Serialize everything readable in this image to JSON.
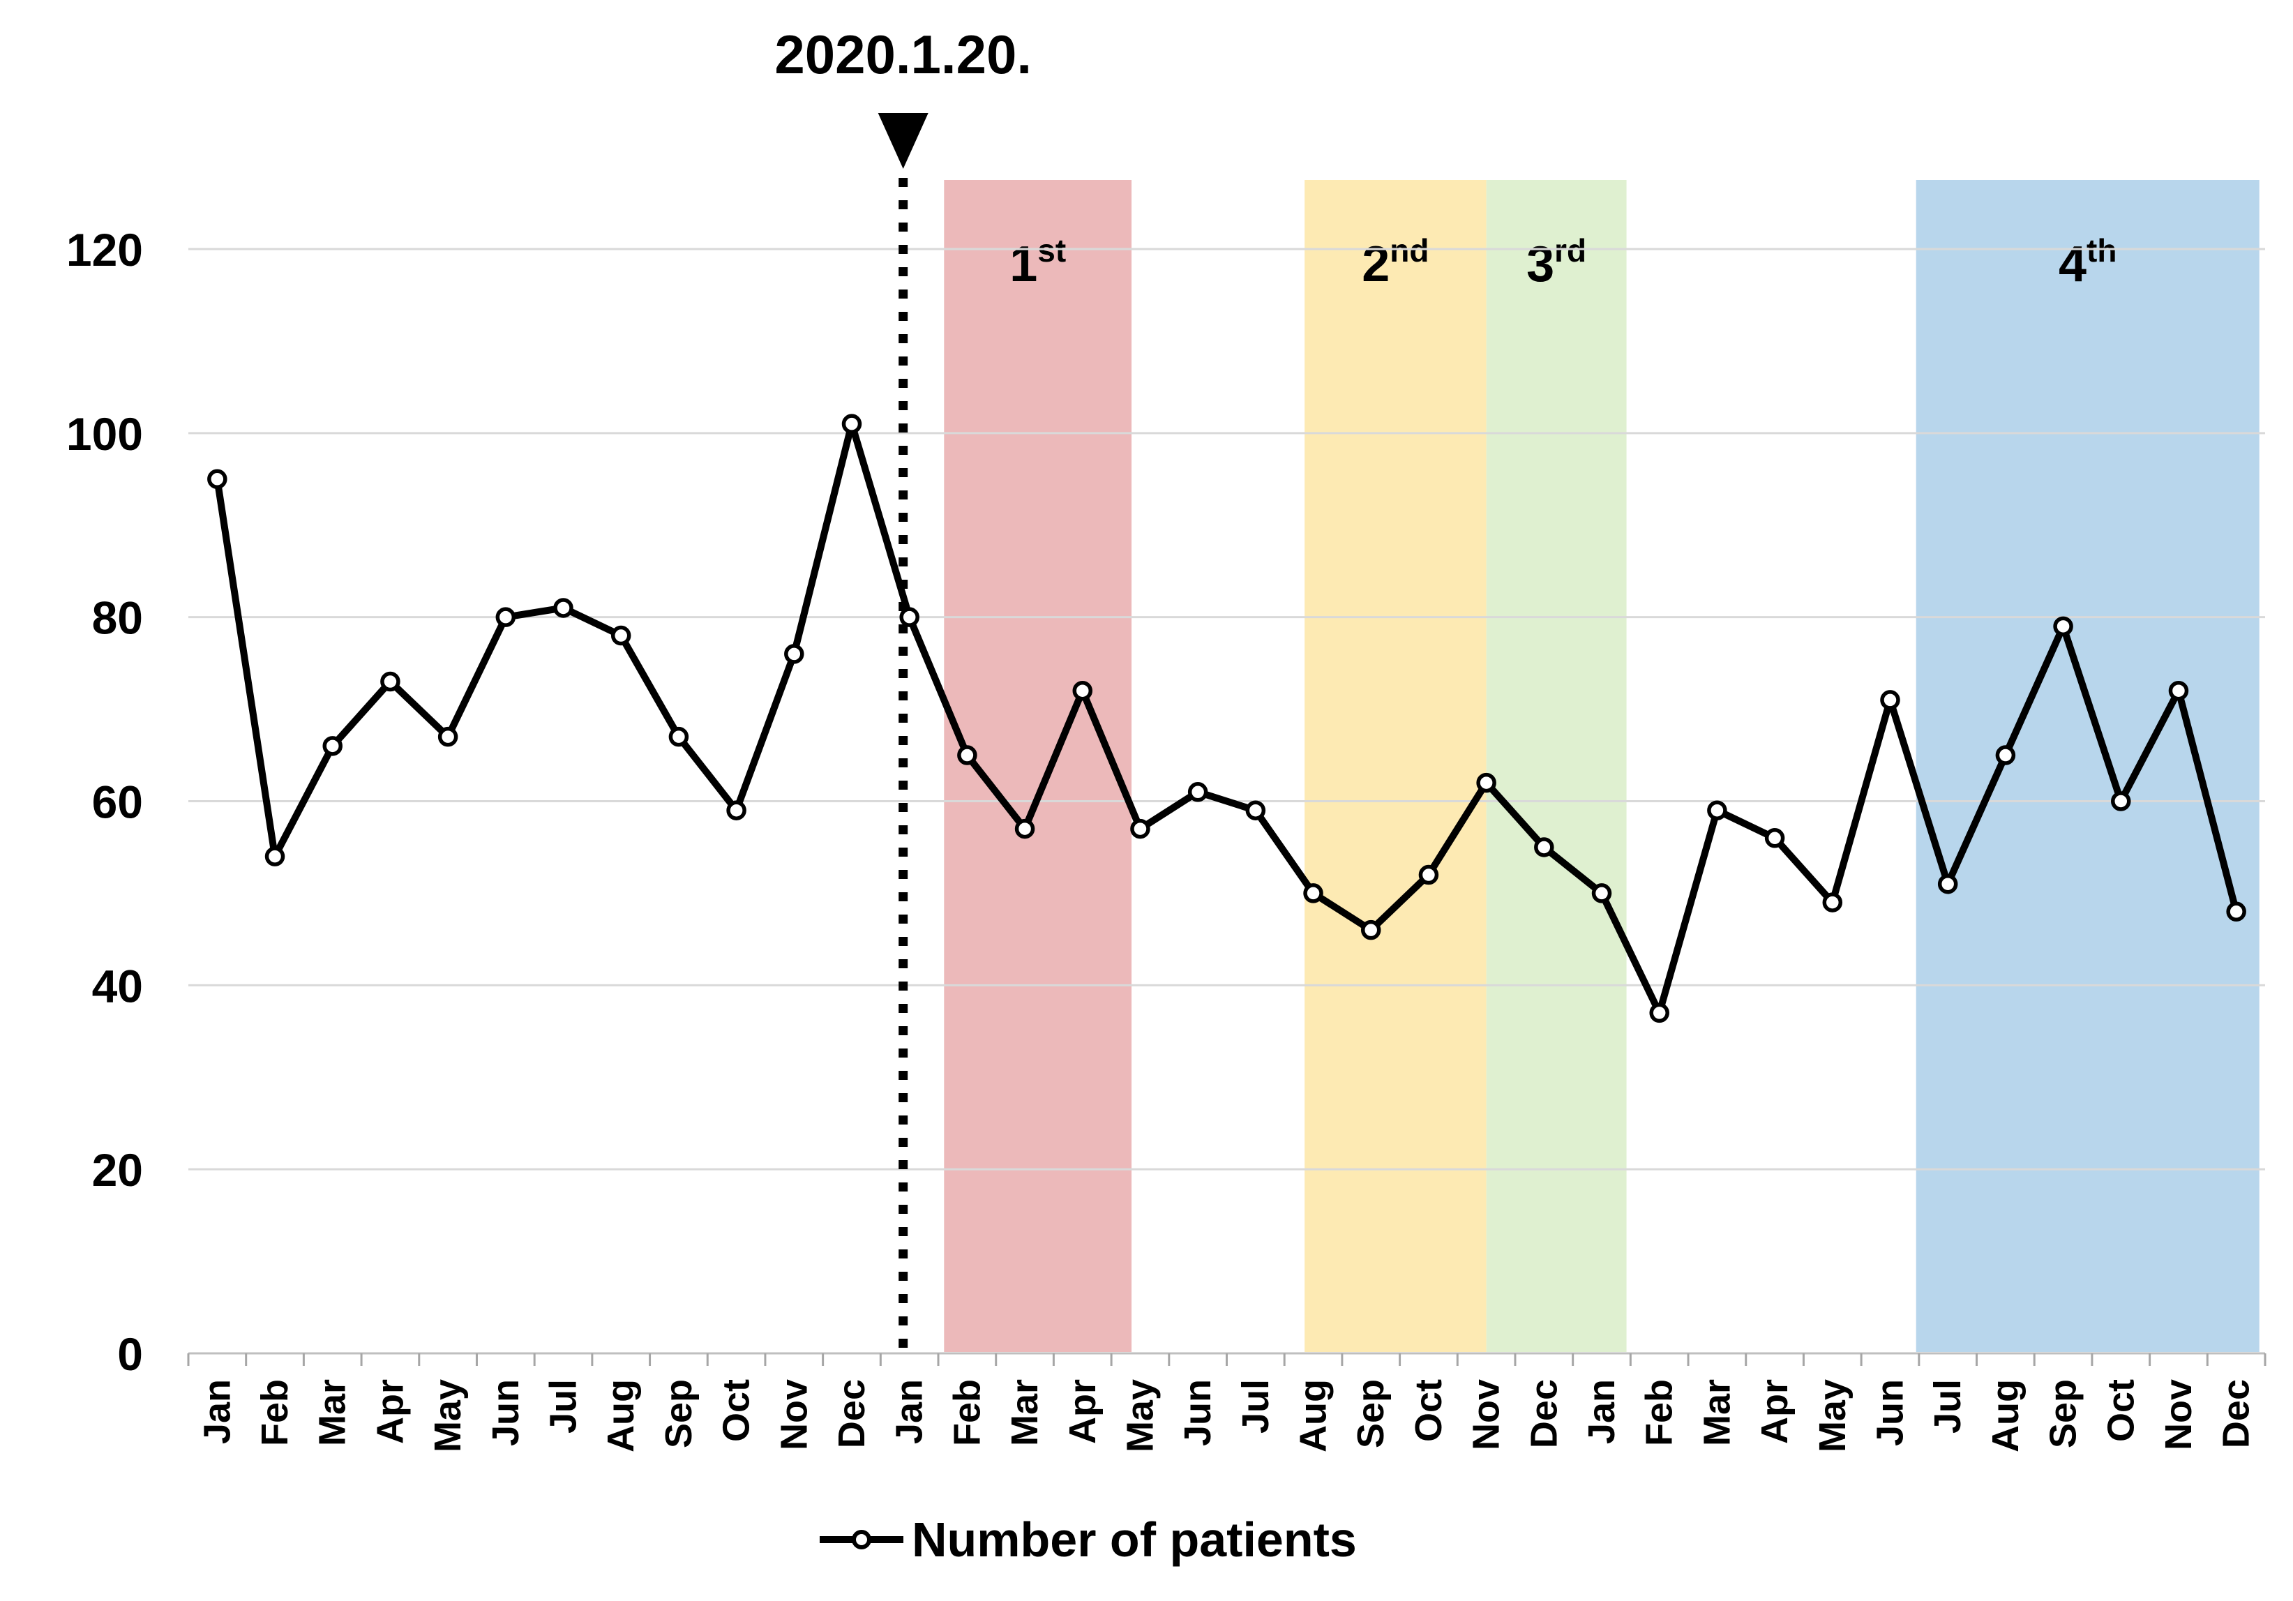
{
  "chart_data": {
    "type": "line",
    "title_annotation": "2020.1.20.",
    "legend_label": "Number of patients",
    "legend_position": "bottom",
    "grid": true,
    "ylim": [
      0,
      120
    ],
    "yticks": [
      0,
      20,
      40,
      60,
      80,
      100,
      120
    ],
    "x_labels": [
      "Jan",
      "Feb",
      "Mar",
      "Apr",
      "May",
      "Jun",
      "Jul",
      "Aug",
      "Sep",
      "Oct",
      "Nov",
      "Dec",
      "Jan",
      "Feb",
      "Mar",
      "Apr",
      "May",
      "Jun",
      "Jul",
      "Aug",
      "Sep",
      "Oct",
      "Nov",
      "Dec",
      "Jan",
      "Feb",
      "Mar",
      "Apr",
      "May",
      "Jun",
      "Jul",
      "Aug",
      "Sep",
      "Oct",
      "Nov",
      "Dec"
    ],
    "series": [
      {
        "name": "Number of patients",
        "values": [
          95,
          54,
          66,
          73,
          67,
          80,
          81,
          78,
          67,
          59,
          76,
          101,
          80,
          65,
          57,
          72,
          57,
          61,
          59,
          50,
          46,
          52,
          62,
          55,
          50,
          37,
          59,
          56,
          49,
          71,
          51,
          65,
          79,
          60,
          72,
          48
        ]
      }
    ],
    "annotation_x_index": 12,
    "waves": [
      {
        "label": "1st",
        "base": "1",
        "sup": "st",
        "color": "#ecb9ba",
        "from_index": 12.6,
        "to_index": 15.85
      },
      {
        "label": "2nd",
        "base": "2",
        "sup": "nd",
        "color": "#fdeab3",
        "from_index": 18.85,
        "to_index": 22.0
      },
      {
        "label": "3rd",
        "base": "3",
        "sup": "rd",
        "color": "#dff0d0",
        "from_index": 22.0,
        "to_index": 24.43
      },
      {
        "label": "4th",
        "base": "4",
        "sup": "th",
        "color": "#b8d6ec",
        "from_index": 29.45,
        "to_index": 35.4
      }
    ],
    "line_color": "#000000",
    "marker_fill": "#ffffff",
    "gridline_color": "#d9d9d9",
    "axis_line_color": "#bfbfbf",
    "tick_color": "#a6a6a6"
  }
}
